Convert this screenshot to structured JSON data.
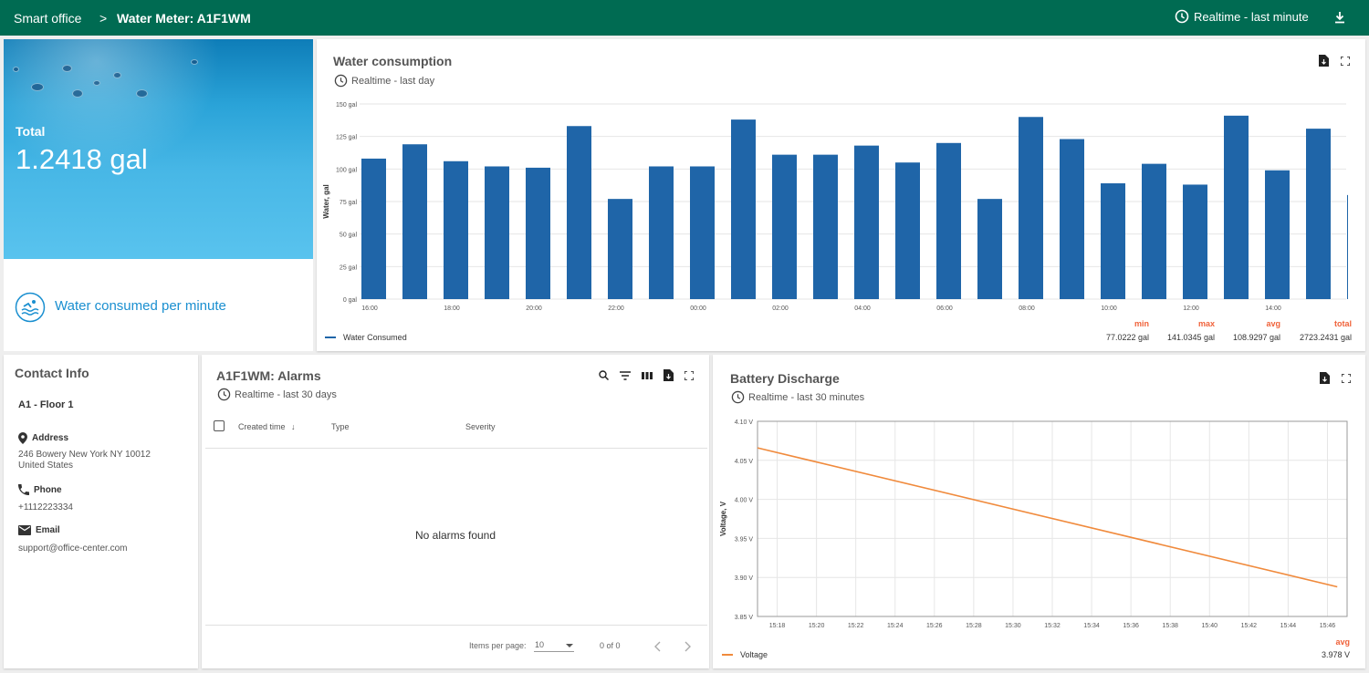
{
  "header": {
    "crumb_root": "Smart office",
    "crumb_sep": ">",
    "crumb_current": "Water Meter: A1F1WM",
    "timewindow": "Realtime - last minute"
  },
  "total_card": {
    "label": "Total",
    "value": "1.2418 gal"
  },
  "consumed_card": {
    "label": "Water consumed per minute"
  },
  "water_chart": {
    "title": "Water consumption",
    "timewindow": "Realtime - last day",
    "legend_series": "Water Consumed",
    "stats": {
      "min_label": "min",
      "min_value": "77.0222 gal",
      "max_label": "max",
      "max_value": "141.0345 gal",
      "avg_label": "avg",
      "avg_value": "108.9297 gal",
      "total_label": "total",
      "total_value": "2723.2431 gal"
    }
  },
  "contact": {
    "title": "Contact Info",
    "name": "A1 - Floor 1",
    "address_label": "Address",
    "address_line1": "246 Bowery New York NY 10012",
    "address_line2": "United States",
    "phone_label": "Phone",
    "phone_value": "+1112223334",
    "email_label": "Email",
    "email_value": "support@office-center.com"
  },
  "alarms": {
    "title": "A1F1WM: Alarms",
    "timewindow": "Realtime - last 30 days",
    "col_created": "Created time",
    "col_type": "Type",
    "col_severity": "Severity",
    "empty": "No alarms found",
    "items_per_page_label": "Items per page:",
    "items_per_page": "10",
    "range": "0 of 0"
  },
  "battery_chart": {
    "title": "Battery Discharge",
    "timewindow": "Realtime - last 30 minutes",
    "legend_series": "Voltage",
    "avg_label": "avg",
    "avg_value": "3.978 V"
  },
  "colors": {
    "header_bg": "#006b52",
    "bar": "#1f65a8",
    "line": "#f08a3c",
    "stat_label": "#f0623a",
    "link_blue": "#1a8fd0"
  },
  "chart_data": [
    {
      "type": "bar",
      "title": "Water consumption",
      "xlabel": "",
      "ylabel": "Water, gal",
      "ylim": [
        0,
        150
      ],
      "yticks": [
        "0 gal",
        "25 gal",
        "50 gal",
        "75 gal",
        "100 gal",
        "125 gal",
        "150 gal"
      ],
      "xticks": [
        "16:00",
        "18:00",
        "20:00",
        "22:00",
        "00:00",
        "02:00",
        "04:00",
        "06:00",
        "08:00",
        "10:00",
        "12:00",
        "14:00"
      ],
      "series": [
        {
          "name": "Water Consumed",
          "values": [
            108,
            119,
            106,
            102,
            101,
            133,
            77,
            102,
            102,
            138,
            111,
            111,
            118,
            105,
            120,
            77,
            140,
            123,
            89,
            104,
            88,
            141,
            99,
            131,
            80
          ]
        }
      ]
    },
    {
      "type": "line",
      "title": "Battery Discharge",
      "xlabel": "",
      "ylabel": "Voltage, V",
      "ylim": [
        3.85,
        4.1
      ],
      "yticks": [
        "3.85 V",
        "3.90 V",
        "3.95 V",
        "4.00 V",
        "4.05 V",
        "4.10 V"
      ],
      "xticks": [
        "15:18",
        "15:20",
        "15:22",
        "15:24",
        "15:26",
        "15:28",
        "15:30",
        "15:32",
        "15:34",
        "15:36",
        "15:38",
        "15:40",
        "15:42",
        "15:44",
        "15:46"
      ],
      "series": [
        {
          "name": "Voltage",
          "x": [
            "15:17",
            "15:46.5"
          ],
          "values": [
            4.066,
            3.888
          ]
        }
      ]
    }
  ]
}
